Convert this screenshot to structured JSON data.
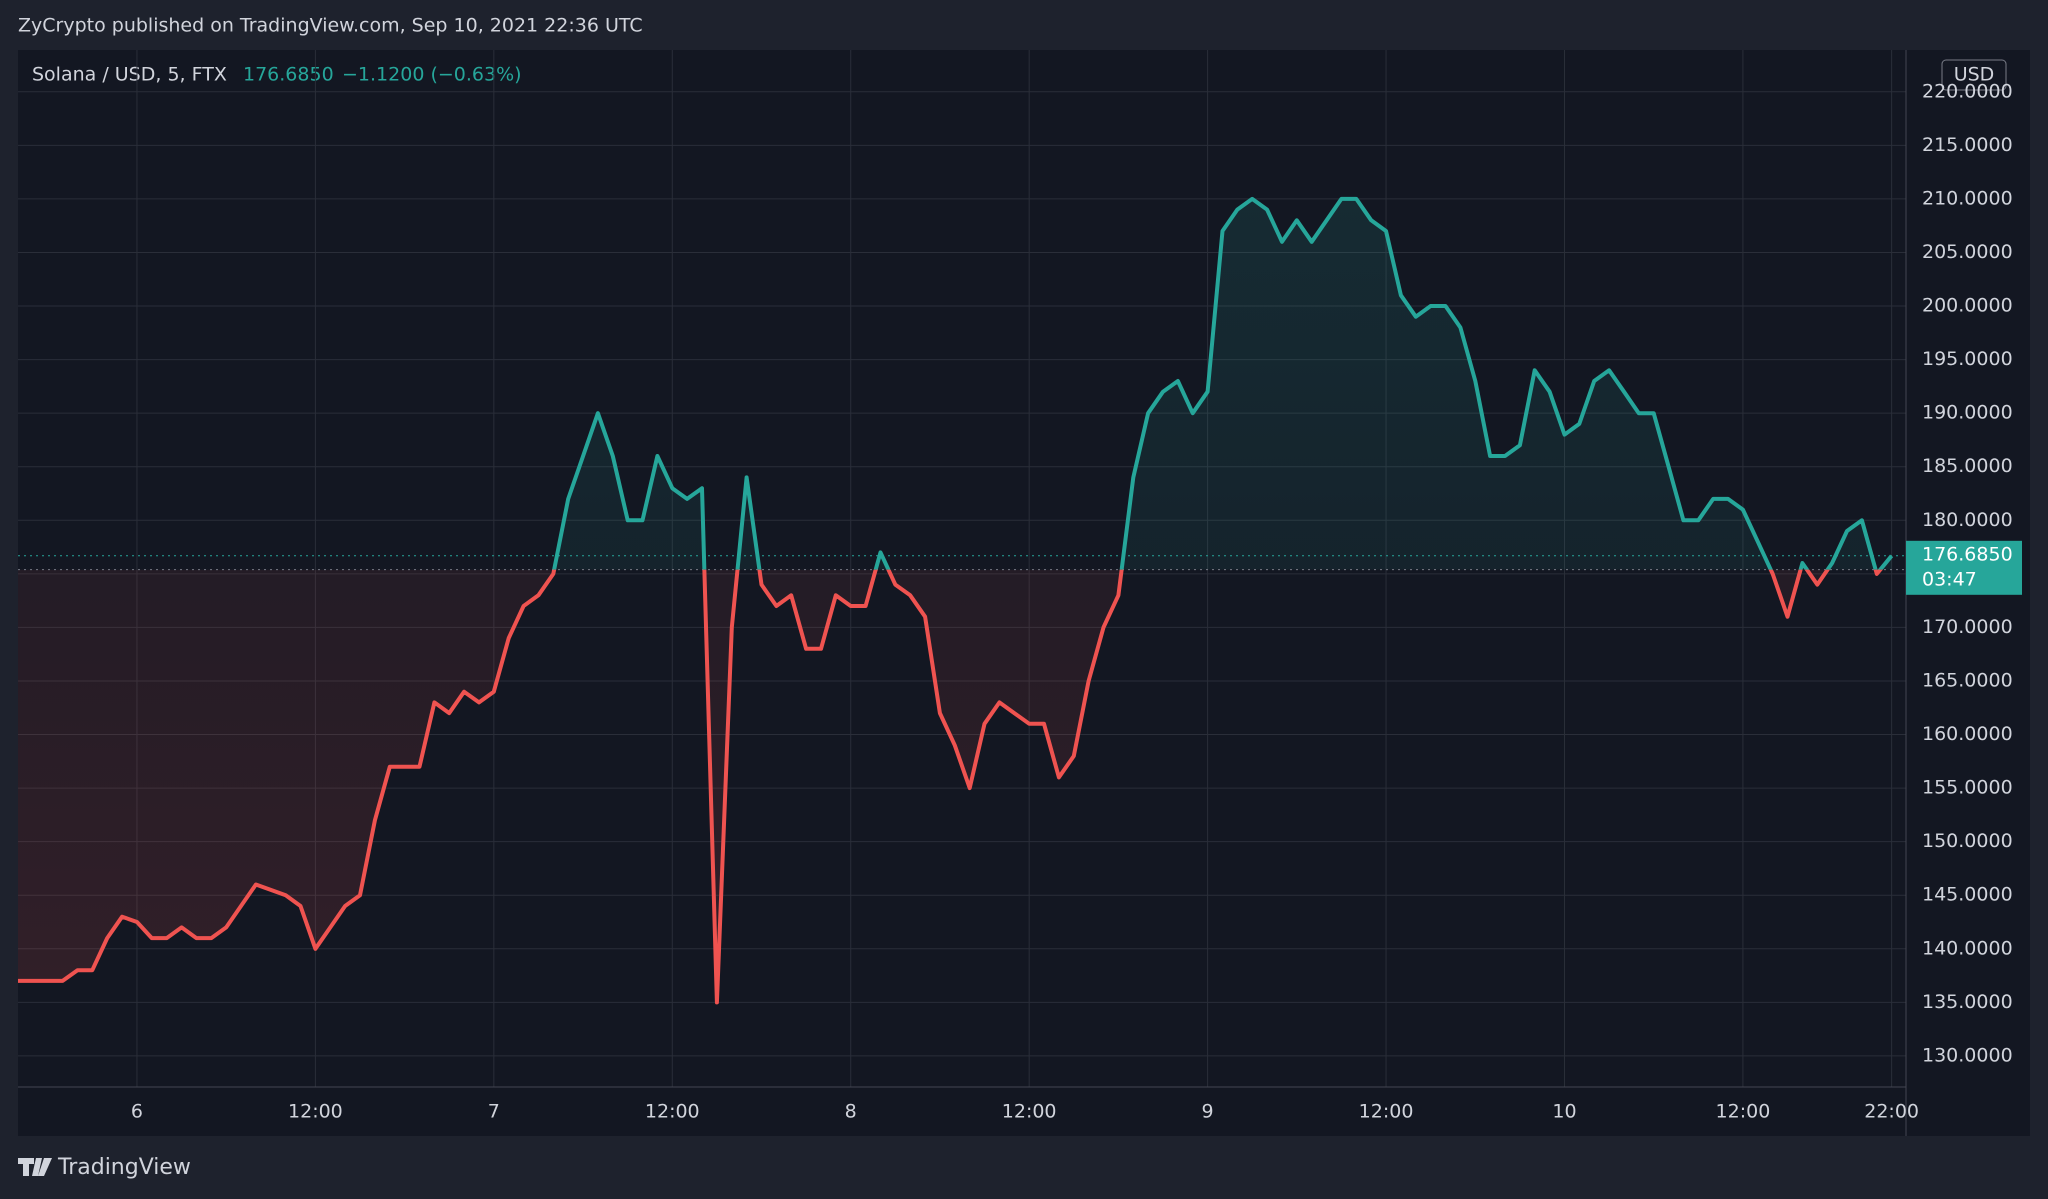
{
  "header": {
    "text": "ZyCrypto published on TradingView.com, Sep 10, 2021 22:36 UTC"
  },
  "footer": {
    "brand": "TradingView"
  },
  "chart_data": {
    "type": "baseline",
    "symbol": "Solana / USD, 5, FTX",
    "last_price": "176.6850",
    "change": "−1.1200 (−0.63%)",
    "countdown": "03:47",
    "currency": "USD",
    "categories": [
      null,
      null,
      null,
      null,
      null,
      null,
      null,
      null,
      "6",
      null,
      null,
      null,
      null,
      null,
      null,
      null,
      null,
      null,
      null,
      null,
      "12:00",
      null,
      null,
      null,
      null,
      null,
      null,
      null,
      null,
      null,
      null,
      null,
      "7",
      null,
      null,
      null,
      null,
      null,
      null,
      null,
      null,
      null,
      null,
      null,
      "12:00",
      null,
      null,
      null,
      null,
      null,
      null,
      null,
      null,
      null,
      null,
      null,
      "8",
      null,
      null,
      null,
      null,
      null,
      null,
      null,
      null,
      null,
      null,
      null,
      "12:00",
      null,
      null,
      null,
      null,
      null,
      null,
      null,
      null,
      null,
      null,
      null,
      "9",
      null,
      null,
      null,
      null,
      null,
      null,
      null,
      null,
      null,
      null,
      null,
      "12:00",
      null,
      null,
      null,
      null,
      null,
      null,
      null,
      null,
      null,
      null,
      null,
      "10",
      null,
      null,
      null,
      null,
      null,
      null,
      null,
      null,
      null,
      null,
      null,
      "12:00",
      null,
      null,
      null,
      null,
      null,
      null,
      null,
      null,
      null,
      "22:00"
    ],
    "values": [
      137,
      137,
      137,
      137,
      138,
      138,
      141,
      143,
      142.5,
      141,
      141,
      142,
      141,
      141,
      142,
      144,
      146,
      145.5,
      145,
      144,
      140,
      142,
      144,
      145,
      152,
      157,
      157,
      157,
      163,
      162,
      164,
      163,
      164,
      169,
      172,
      173,
      175,
      182,
      186,
      190,
      186,
      180,
      180,
      186,
      183,
      182,
      183,
      135,
      170,
      184,
      174,
      172,
      173,
      168,
      168,
      173,
      172,
      172,
      177,
      174,
      173,
      171,
      162,
      159,
      155,
      161,
      163,
      162,
      161,
      161,
      156,
      158,
      165,
      170,
      173,
      184,
      190,
      192,
      193,
      190,
      192,
      207,
      209,
      210,
      209,
      206,
      208,
      206,
      208,
      210,
      210,
      208,
      207,
      201,
      199,
      200,
      200,
      198,
      193,
      186,
      186,
      187,
      194,
      192,
      188,
      189,
      193,
      194,
      192,
      190,
      190,
      185,
      180,
      180,
      182,
      182,
      181,
      178,
      175,
      171,
      176,
      174,
      176,
      179,
      180,
      175,
      176.685
    ],
    "baseline": 175.4,
    "up_color": "#26a69a",
    "down_color": "#ef5350",
    "ylim": [
      127.1,
      223.9
    ],
    "yticks": [
      {
        "value": 130,
        "label": "130.0000"
      },
      {
        "value": 135,
        "label": "135.0000"
      },
      {
        "value": 140,
        "label": "140.0000"
      },
      {
        "value": 145,
        "label": "145.0000"
      },
      {
        "value": 150,
        "label": "150.0000"
      },
      {
        "value": 155,
        "label": "155.0000"
      },
      {
        "value": 160,
        "label": "160.0000"
      },
      {
        "value": 165,
        "label": "165.0000"
      },
      {
        "value": 170,
        "label": "170.0000"
      },
      {
        "value": 175,
        "label": "175.0000"
      },
      {
        "value": 180,
        "label": "180.0000"
      },
      {
        "value": 185,
        "label": "185.0000"
      },
      {
        "value": 190,
        "label": "190.0000"
      },
      {
        "value": 195,
        "label": "195.0000"
      },
      {
        "value": 200,
        "label": "200.0000"
      },
      {
        "value": 205,
        "label": "205.0000"
      },
      {
        "value": 210,
        "label": "210.0000"
      },
      {
        "value": 215,
        "label": "215.0000"
      },
      {
        "value": 220,
        "label": "220.0000"
      }
    ],
    "grid": true
  }
}
